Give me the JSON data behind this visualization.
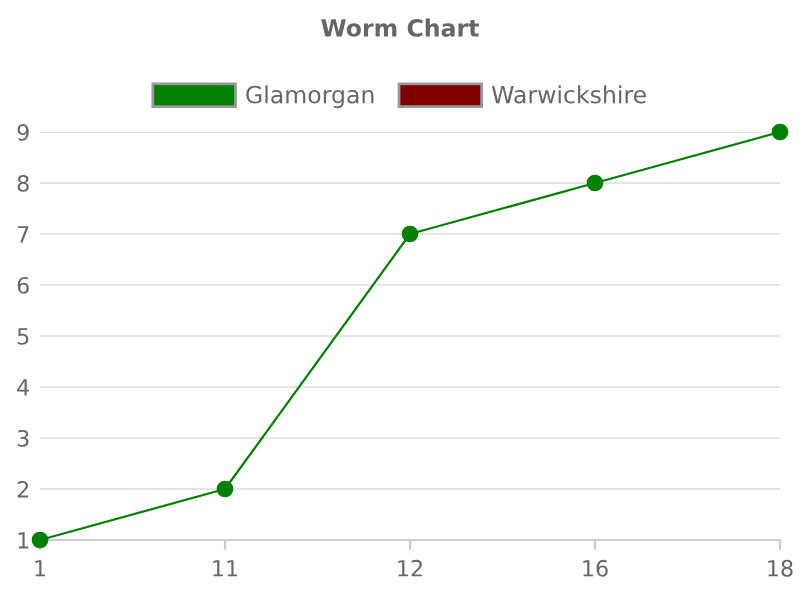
{
  "chart_data": {
    "type": "line",
    "title": "Worm Chart",
    "categories": [
      "1",
      "11",
      "12",
      "16",
      "18"
    ],
    "series": [
      {
        "name": "Glamorgan",
        "color": "#008000",
        "values": [
          1,
          2,
          7,
          8,
          9
        ]
      },
      {
        "name": "Warwickshire",
        "color": "#800000",
        "values": [
          null,
          null,
          null,
          null,
          null
        ]
      }
    ],
    "ylim": [
      1,
      9
    ],
    "yticks": [
      1,
      2,
      3,
      4,
      5,
      6,
      7,
      8,
      9
    ],
    "grid": "y",
    "legend": "top",
    "marker": "circle",
    "line_style": "solid"
  }
}
